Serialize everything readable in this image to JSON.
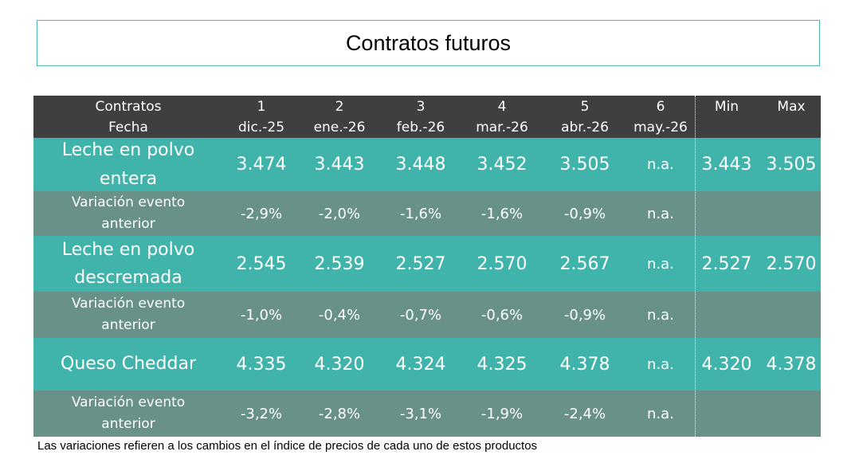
{
  "title": "Contratos futuros",
  "header": {
    "label_top": "Contratos",
    "label_bottom": "Fecha",
    "contracts": [
      "1",
      "2",
      "3",
      "4",
      "5",
      "6"
    ],
    "dates": [
      "dic.-25",
      "ene.-26",
      "feb.-26",
      "mar.-26",
      "abr.-26",
      "may.-26"
    ],
    "min": "Min",
    "max": "Max"
  },
  "rows": [
    {
      "label": "Leche en polvo entera",
      "values": [
        "3.474",
        "3.443",
        "3.448",
        "3.452",
        "3.505",
        "n.a."
      ],
      "min": "3.443",
      "max": "3.505"
    },
    {
      "label": "Variación evento anterior",
      "values": [
        "-2,9%",
        "-2,0%",
        "-1,6%",
        "-1,6%",
        "-0,9%",
        "n.a."
      ]
    },
    {
      "label": "Leche en polvo descremada",
      "values": [
        "2.545",
        "2.539",
        "2.527",
        "2.570",
        "2.567",
        "n.a."
      ],
      "min": "2.527",
      "max": "2.570"
    },
    {
      "label": "Variación evento anterior",
      "values": [
        "-1,0%",
        "-0,4%",
        "-0,7%",
        "-0,6%",
        "-0,9%",
        "n.a."
      ]
    },
    {
      "label": "Queso Cheddar",
      "values": [
        "4.335",
        "4.320",
        "4.324",
        "4.325",
        "4.378",
        "n.a."
      ],
      "min": "4.320",
      "max": "4.378"
    },
    {
      "label": "Variación evento anterior",
      "values": [
        "-3,2%",
        "-2,8%",
        "-3,1%",
        "-1,9%",
        "-2,4%",
        "n.a."
      ]
    }
  ],
  "footnote": "Las variaciones refieren a los cambios en el índice de precios de cada uno de estos productos"
}
